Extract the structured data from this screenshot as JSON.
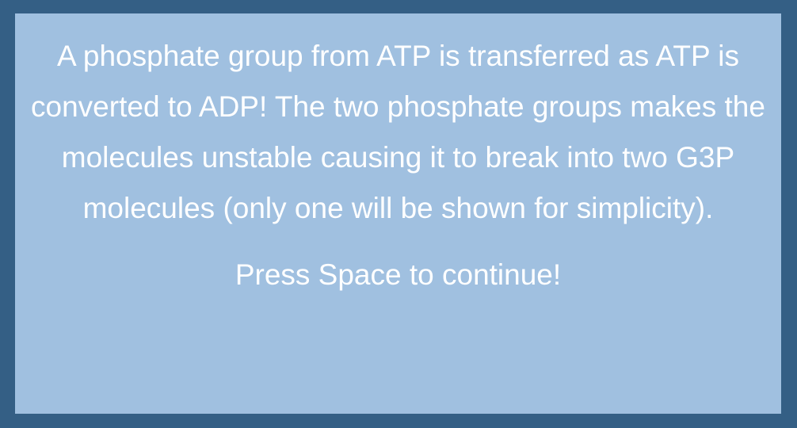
{
  "dialog": {
    "message": "A phosphate group from ATP is transferred as ATP is converted to ADP! The two phosphate groups makes the molecules unstable causing it to break into two G3P molecules (only one will be shown for simplicity).",
    "prompt": "Press Space to continue!"
  },
  "colors": {
    "border": "#345f85",
    "panel": "#a0c0e0",
    "text": "#ffffff"
  }
}
